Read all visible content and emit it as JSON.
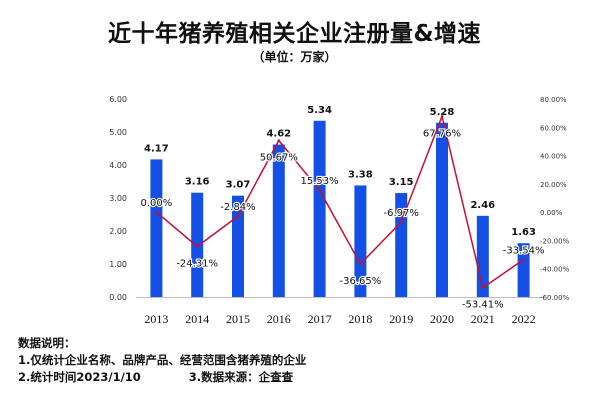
{
  "title": "近十年猪养殖相关企业注册量&增速",
  "subtitle": "（单位：万家）",
  "chart_data": {
    "type": "bar",
    "categories": [
      "2013",
      "2014",
      "2015",
      "2016",
      "2017",
      "2018",
      "2019",
      "2020",
      "2021",
      "2022"
    ],
    "series": [
      {
        "type": "bar",
        "values": [
          4.17,
          3.16,
          3.07,
          4.62,
          5.34,
          3.38,
          3.15,
          5.28,
          2.46,
          1.63
        ],
        "labels": [
          "4.17",
          "3.16",
          "3.07",
          "4.62",
          "5.34",
          "3.38",
          "3.15",
          "5.28",
          "2.46",
          "1.63"
        ]
      },
      {
        "type": "line",
        "axis": "right",
        "values": [
          0.0,
          -24.31,
          -2.84,
          50.67,
          15.53,
          -36.65,
          -6.97,
          67.76,
          -53.41,
          -33.54
        ],
        "labels": [
          "0.00%",
          "-24.31%",
          "-2.84%",
          "50.67%",
          "15.53%",
          "-36.65%",
          "-6.97%",
          "67.76%",
          "-53.41%",
          "-33.54%"
        ]
      }
    ],
    "ylim": [
      0,
      6
    ],
    "y_ticks": [
      "0.00",
      "1.00",
      "2.00",
      "3.00",
      "4.00",
      "5.00",
      "6.00"
    ],
    "y2lim": [
      -60,
      80
    ],
    "y2_ticks": [
      "-60.00%",
      "-40.00%",
      "-20.00%",
      "0.00%",
      "20.00%",
      "40.00%",
      "60.00%",
      "80.00%"
    ],
    "colors": {
      "bar": "#1450e6",
      "line": "#c8102e"
    },
    "grid": false
  },
  "notes": {
    "heading": "数据说明：",
    "line1": "1.仅统计企业名称、品牌产品、经营范围含猪养殖的企业",
    "line2a": "2.统计时间2023/1/10",
    "line2b": "3.数据来源：企查查"
  }
}
